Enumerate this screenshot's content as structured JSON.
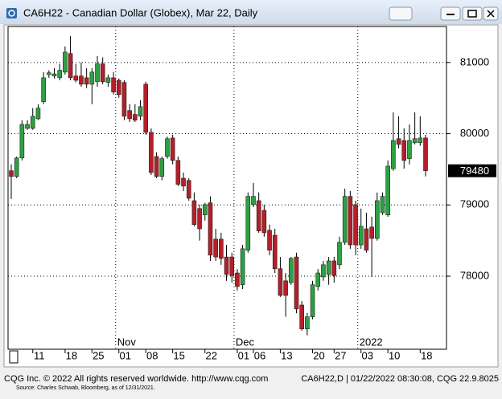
{
  "chart_data": {
    "type": "candlestick",
    "title": "CA6H22 - Canadian Dollar (Globex), Mar 22, Daily",
    "footer_left": "CQG Inc. © 2022 All rights reserved worldwide. http://www.cqg.com",
    "footer_right": "CA6H22,D | 01/22/2022 08:30:08, CQG 22.9.8025",
    "source": "Source: Charles Schwab, Bloomberg, as of 12/31/2021.",
    "up_color": "#2ea043",
    "down_color": "#b3202a",
    "grid": true,
    "ylim": [
      76975,
      81505
    ],
    "yticks": [
      78000,
      79000,
      80000,
      81000
    ],
    "xlim": [
      0,
      77
    ],
    "xticks": [
      {
        "value": 4,
        "label": "11"
      },
      {
        "value": 10,
        "label": "18"
      },
      {
        "value": 15,
        "label": "25"
      },
      {
        "value": 20,
        "label": "01"
      },
      {
        "value": 25,
        "label": "08"
      },
      {
        "value": 30,
        "label": "15"
      },
      {
        "value": 36,
        "label": "22"
      },
      {
        "value": 42,
        "label": "01"
      },
      {
        "value": 45,
        "label": "06"
      },
      {
        "value": 50,
        "label": "13"
      },
      {
        "value": 56,
        "label": "20"
      },
      {
        "value": 60,
        "label": "27"
      },
      {
        "value": 65,
        "label": "03"
      },
      {
        "value": 70,
        "label": "10"
      },
      {
        "value": 76,
        "label": "18"
      }
    ],
    "month_ticks": [
      {
        "value": 20,
        "label": "Nov"
      },
      {
        "value": 42,
        "label": "Dec"
      },
      {
        "value": 65,
        "label": "2022"
      }
    ],
    "open": [
      79480,
      79400,
      79660,
      80075,
      80075,
      80210,
      80450,
      80830,
      80810,
      80785,
      80865,
      81125,
      80810,
      80810,
      80785,
      80695,
      80730,
      80980,
      80720,
      80785,
      80750,
      80720,
      80325,
      80270,
      80245,
      80695,
      80020,
      79680,
      79400,
      79680,
      79940,
      79625,
      79375,
      79345,
      79060,
      78950,
      78860,
      79030,
      78520,
      78520,
      78270,
      78270,
      78045,
      77880,
      78365,
      79005,
      79060,
      78925,
      78645,
      78575,
      78105,
      77935,
      77910,
      78270,
      77595,
      77260,
      77430,
      77855,
      77990,
      78025,
      78215,
      78160,
      78475,
      79120,
      79005,
      78440,
      78665,
      78690,
      78530,
      78890,
      78860,
      79510,
      79930,
      79905,
      79650,
      79875,
      79875,
      79940
    ],
    "high": [
      79570,
      79680,
      80190,
      80190,
      80360,
      80415,
      80865,
      80890,
      80920,
      80980,
      81225,
      81370,
      80980,
      81000,
      80920,
      80920,
      81090,
      81070,
      80830,
      80865,
      80775,
      80750,
      80415,
      80415,
      80470,
      80730,
      80075,
      79740,
      79680,
      79960,
      79985,
      79680,
      79455,
      79375,
      79175,
      79005,
      79030,
      79120,
      78665,
      78610,
      78440,
      78330,
      78100,
      78440,
      79175,
      79310,
      79175,
      79005,
      78725,
      78665,
      78270,
      78045,
      78270,
      78330,
      77650,
      77485,
      77935,
      78100,
      78215,
      78270,
      78270,
      78555,
      79230,
      79195,
      79060,
      78950,
      78890,
      78835,
      79175,
      79175,
      79625,
      80300,
      80245,
      80075,
      80130,
      80300,
      80245,
      79985
    ],
    "low": [
      79085,
      79375,
      79625,
      80055,
      80055,
      80190,
      80415,
      80785,
      80775,
      80750,
      80830,
      80750,
      80720,
      80660,
      80640,
      80415,
      80660,
      80695,
      80660,
      80550,
      80505,
      80190,
      80165,
      80165,
      80190,
      79985,
      79420,
      79375,
      79345,
      79650,
      79570,
      79265,
      79195,
      79060,
      78700,
      78500,
      78780,
      78215,
      78215,
      78160,
      77935,
      77910,
      77800,
      77820,
      78330,
      78970,
      78610,
      78555,
      78295,
      78045,
      77710,
      77430,
      77880,
      77480,
      77235,
      77170,
      77395,
      77800,
      77935,
      77880,
      77910,
      78100,
      78440,
      78385,
      78295,
      78385,
      78330,
      77990,
      78500,
      78860,
      78835,
      79480,
      79795,
      79510,
      79570,
      79850,
      79830,
      79400
    ],
    "close": [
      79400,
      79660,
      80130,
      80130,
      80245,
      80360,
      80785,
      80855,
      80840,
      80890,
      81145,
      80785,
      80750,
      80695,
      80695,
      80865,
      80980,
      80730,
      80785,
      80585,
      80550,
      80245,
      80210,
      80190,
      80380,
      80020,
      79455,
      79400,
      79650,
      79930,
      79625,
      79290,
      79265,
      79095,
      78725,
      78665,
      79005,
      78295,
      78270,
      78250,
      78025,
      78010,
      77855,
      78385,
      79120,
      79120,
      78635,
      78610,
      78365,
      78105,
      77730,
      77730,
      78250,
      77540,
      77260,
      77430,
      77880,
      78045,
      78160,
      78215,
      78010,
      78475,
      79120,
      78440,
      78440,
      78700,
      78365,
      78530,
      79060,
      79120,
      79545,
      79905,
      79850,
      79625,
      79905,
      79930,
      79940,
      79480
    ]
  }
}
